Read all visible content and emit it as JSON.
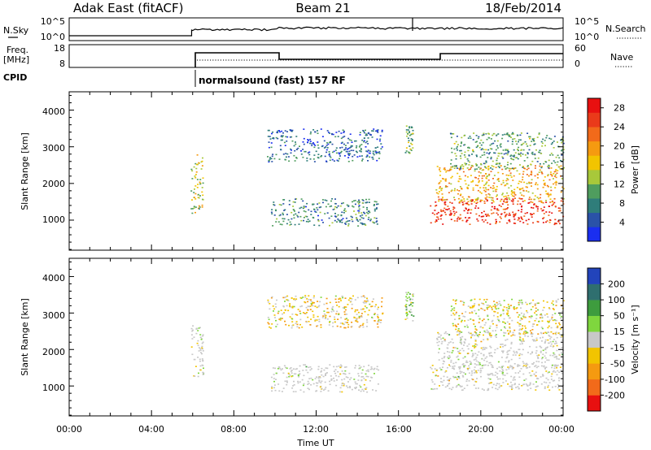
{
  "header": {
    "station": "Adak East (fitACF)",
    "beam": "Beam 21",
    "date": "18/Feb/2014"
  },
  "scan_panels": {
    "nsky": {
      "label": "N.Sky",
      "ticks_left": [
        "10^5",
        "10^0"
      ],
      "ticks_right": [
        "10^5",
        "10^0"
      ],
      "right_label": "N.Search"
    },
    "freq": {
      "label_line1": "Freq.",
      "label_line2": "[MHz]",
      "ticks_left": [
        "18",
        "8"
      ],
      "ticks_right": [
        "60",
        "0"
      ],
      "right_label": "Nave"
    },
    "cpid": {
      "label": "CPID",
      "program": "normalsound (fast) 157 RF"
    }
  },
  "colors": {
    "power_scale": [
      "#1a2ef0",
      "#2a52a8",
      "#2f7d7a",
      "#4f9d5e",
      "#a8c83a",
      "#f2c400",
      "#f59a10",
      "#f26a1a",
      "#ea3a1a",
      "#e81010"
    ],
    "velocity_scale": [
      "#e81010",
      "#f26a1a",
      "#f59a10",
      "#f2c400",
      "#c8c8c8",
      "#7fd63e",
      "#3e9c3e",
      "#2f6f6f",
      "#2244bb"
    ],
    "ground_scatter": "#c8c8c8"
  },
  "chart_data": [
    {
      "type": "heatmap",
      "name": "power",
      "ylabel": "Slant Range [km]",
      "y_ticks": [
        "1000",
        "2000",
        "3000",
        "4000"
      ],
      "ylim": [
        180,
        4500
      ],
      "xlim": [
        0,
        24
      ],
      "colorbar": {
        "label": "Power [dB]",
        "ticks": [
          "4",
          "8",
          "12",
          "16",
          "20",
          "24",
          "28"
        ],
        "range": [
          0,
          30
        ]
      },
      "regions": [
        {
          "t0": 5.9,
          "t1": 6.5,
          "r0": 1200,
          "r1": 2800,
          "value": 14
        },
        {
          "t0": 9.6,
          "t1": 15.2,
          "r0": 2600,
          "r1": 3500,
          "value": 6
        },
        {
          "t0": 9.8,
          "t1": 15.0,
          "r0": 850,
          "r1": 1600,
          "value": 8
        },
        {
          "t0": 16.3,
          "t1": 16.7,
          "r0": 2800,
          "r1": 3600,
          "value": 12
        },
        {
          "t0": 17.5,
          "t1": 24.0,
          "r0": 900,
          "r1": 1600,
          "value": 26
        },
        {
          "t0": 17.8,
          "t1": 24.0,
          "r0": 1500,
          "r1": 2500,
          "value": 18
        },
        {
          "t0": 18.5,
          "t1": 24.0,
          "r0": 2400,
          "r1": 3400,
          "value": 10
        }
      ]
    },
    {
      "type": "heatmap",
      "name": "velocity",
      "ylabel": "Slant Range [km]",
      "y_ticks": [
        "1000",
        "2000",
        "3000",
        "4000"
      ],
      "ylim": [
        180,
        4500
      ],
      "xlim": [
        0,
        24
      ],
      "x_ticks": [
        "00:00",
        "04:00",
        "08:00",
        "12:00",
        "16:00",
        "20:00",
        "00:00"
      ],
      "xlabel": "Time UT",
      "colorbar": {
        "label": "Velocity [m s⁻¹]",
        "ticks": [
          "200",
          "100",
          "50",
          "15",
          "-15",
          "-50",
          "-100",
          "-200"
        ],
        "range": [
          -250,
          250
        ]
      },
      "regions": [
        {
          "t0": 5.9,
          "t1": 6.5,
          "r0": 1200,
          "r1": 2800,
          "value": 0
        },
        {
          "t0": 9.6,
          "t1": 15.2,
          "r0": 2600,
          "r1": 3500,
          "value": -40
        },
        {
          "t0": 9.8,
          "t1": 15.0,
          "r0": 850,
          "r1": 1600,
          "value": 0
        },
        {
          "t0": 16.3,
          "t1": 16.7,
          "r0": 2800,
          "r1": 3600,
          "value": 40
        },
        {
          "t0": 17.5,
          "t1": 24.0,
          "r0": 900,
          "r1": 1600,
          "value": 0
        },
        {
          "t0": 17.8,
          "t1": 24.0,
          "r0": 1500,
          "r1": 2500,
          "value": 0
        },
        {
          "t0": 18.5,
          "t1": 24.0,
          "r0": 2400,
          "r1": 3400,
          "value": -20
        }
      ]
    }
  ]
}
